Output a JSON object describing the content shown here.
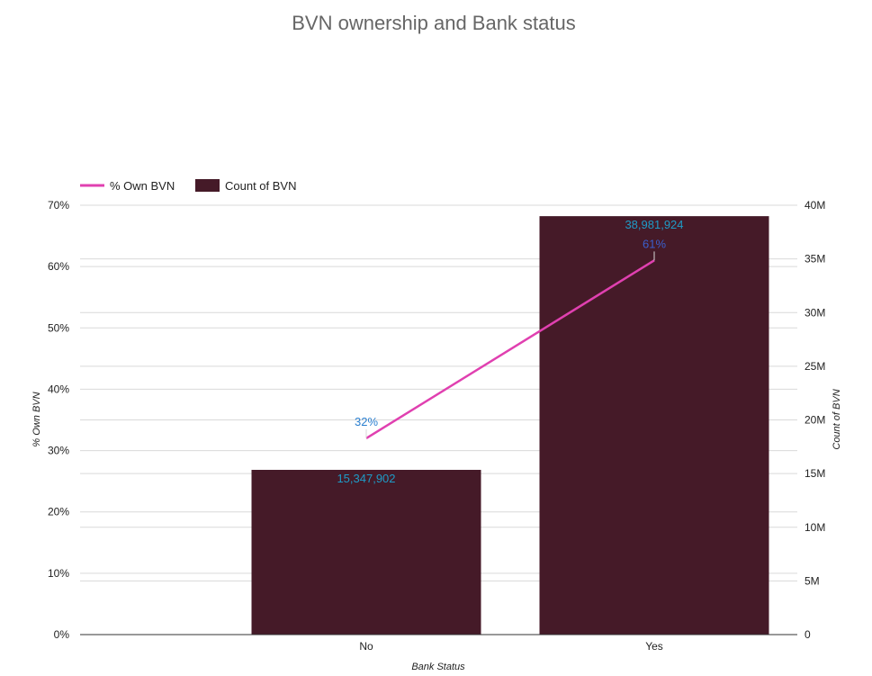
{
  "chart_data": {
    "type": "bar",
    "title": "BVN ownership and Bank status",
    "xlabel": "Bank Status",
    "ylabel_left": "% Own BVN",
    "ylabel_right": "Count of BVN",
    "categories": [
      "No",
      "Yes"
    ],
    "series": [
      {
        "name": "Count of BVN",
        "type": "bar",
        "axis": "right",
        "color": "#451a28",
        "values": [
          15347902,
          38981924
        ],
        "labels": [
          "15,347,902",
          "38,981,924"
        ]
      },
      {
        "name": "% Own BVN",
        "type": "line",
        "axis": "left",
        "color": "#e040b0",
        "values": [
          32,
          61
        ],
        "labels": [
          "32%",
          "61%"
        ]
      }
    ],
    "left_axis": {
      "range": [
        0,
        70
      ],
      "ticks": [
        0,
        10,
        20,
        30,
        40,
        50,
        60,
        70
      ],
      "tick_labels": [
        "0%",
        "10%",
        "20%",
        "30%",
        "40%",
        "50%",
        "60%",
        "70%"
      ]
    },
    "right_axis": {
      "range": [
        0,
        40000000
      ],
      "ticks": [
        0,
        5000000,
        10000000,
        15000000,
        20000000,
        25000000,
        30000000,
        35000000,
        40000000
      ],
      "tick_labels": [
        "0",
        "5M",
        "10M",
        "15M",
        "20M",
        "25M",
        "30M",
        "35M",
        "40M"
      ]
    },
    "legend": {
      "position": "top-left",
      "items": [
        "% Own BVN",
        "Count of BVN"
      ]
    },
    "grid": true,
    "colors": {
      "bar": "#451a28",
      "line": "#e040b0",
      "label_bar": "#1e9bc7",
      "label_line_no": "#2a7fcf",
      "label_line_yes": "#3a5fcd",
      "grid": "#d9d9d9",
      "text": "#222222",
      "title": "#666666"
    }
  }
}
